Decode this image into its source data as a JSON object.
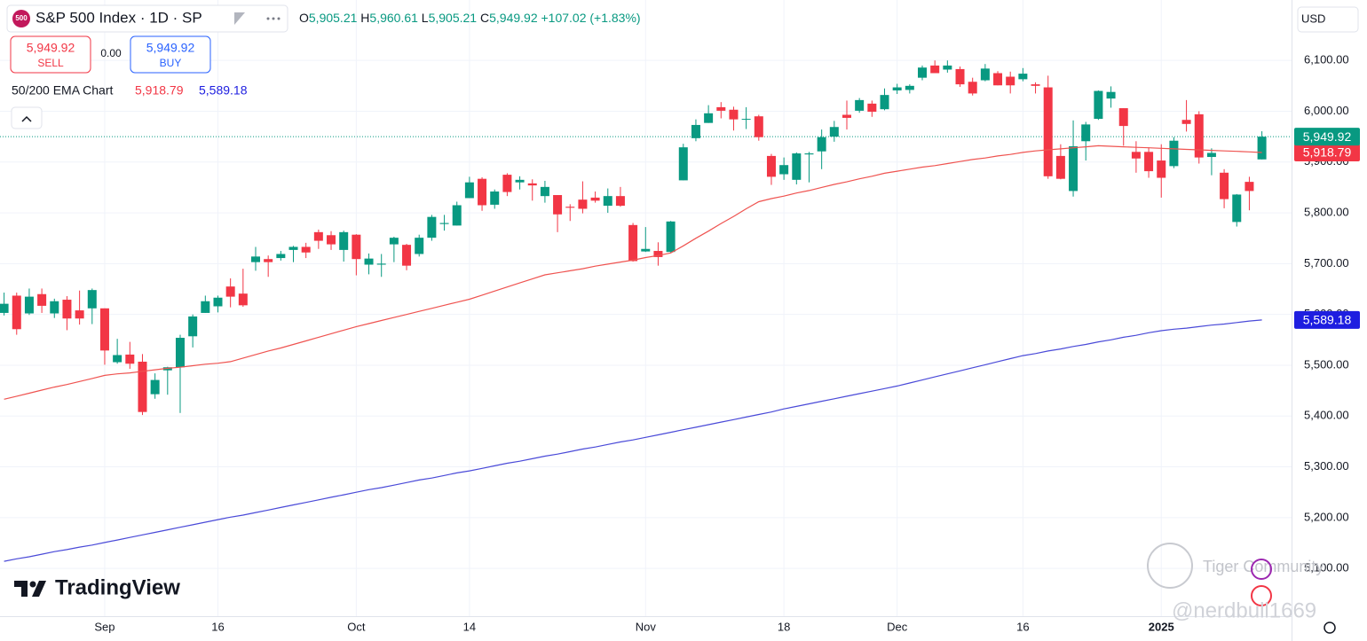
{
  "header": {
    "ohlc": [
      [
        "O",
        "5,905.21"
      ],
      [
        "H",
        "5,960.61"
      ],
      [
        "L",
        "5,905.21"
      ],
      [
        "C",
        "5,949.92"
      ]
    ],
    "change": "+107.02 (+1.83%)",
    "sell_price": "5,949.92",
    "sell": "SELL",
    "spread": "0.00",
    "buy_price": "5,949.92",
    "buy": "BUY",
    "indicator": "50/200 EMA Chart",
    "currency": "USD",
    "logo": "TradingView",
    "watermark": "Tiger Community",
    "handle": "@nerdbull1669"
  },
  "chart_data": {
    "type": "candlestick",
    "title": "S&P 500 Index · 1D · SP",
    "categories": [
      null,
      null,
      null,
      null,
      null,
      null,
      null,
      null,
      "Sep",
      null,
      null,
      null,
      null,
      null,
      null,
      null,
      null,
      "16",
      null,
      null,
      null,
      null,
      null,
      null,
      null,
      null,
      null,
      null,
      "Oct",
      null,
      null,
      null,
      null,
      null,
      null,
      null,
      null,
      "14",
      null,
      null,
      null,
      null,
      null,
      null,
      null,
      null,
      null,
      null,
      null,
      null,
      null,
      "Nov",
      null,
      null,
      null,
      null,
      null,
      null,
      null,
      null,
      null,
      null,
      "18",
      null,
      null,
      null,
      null,
      null,
      null,
      null,
      null,
      "Dec",
      null,
      null,
      null,
      null,
      null,
      null,
      null,
      null,
      null,
      "16",
      null,
      null,
      null,
      null,
      null,
      null,
      null,
      null,
      null,
      null,
      "2025",
      null,
      null,
      null,
      null,
      null,
      null,
      null,
      null
    ],
    "open": [
      5603,
      5637,
      5602,
      5640,
      5602,
      5629,
      5608,
      5612,
      5612,
      5506,
      5521,
      5507,
      5443,
      5490,
      5496,
      5557,
      5603,
      5616,
      5655,
      5641,
      5703,
      5709,
      5711,
      5727,
      5733,
      5762,
      5756,
      5727,
      5757,
      5698,
      5698,
      5738,
      5737,
      5719,
      5751,
      5778,
      5775,
      5829,
      5867,
      5816,
      5875,
      5860,
      5858,
      5833,
      5835,
      5812,
      5826,
      5830,
      5814,
      5833,
      5776,
      5724,
      5725,
      5723,
      5864,
      5947,
      5977,
      6008,
      6003,
      5985,
      5990,
      5912,
      5876,
      5865,
      5915,
      5921,
      5950,
      5993,
      6001,
      6015,
      6004,
      6041,
      6042,
      6066,
      6090,
      6082,
      6083,
      6058,
      6061,
      6075,
      6068,
      6063,
      6053,
      6047,
      5912,
      5843,
      5941,
      5985,
      6025,
      6006,
      5920,
      5920,
      5903,
      5892,
      5983,
      5994,
      5910,
      5879,
      5782,
      5861,
      5905.21
    ],
    "high": [
      5643,
      5643,
      5651,
      5651,
      5631,
      5636,
      5647,
      5651,
      5612,
      5552,
      5546,
      5522,
      5484,
      5497,
      5560,
      5600,
      5637,
      5637,
      5671,
      5690,
      5733,
      5716,
      5725,
      5735,
      5741,
      5767,
      5764,
      5765,
      5758,
      5720,
      5719,
      5753,
      5739,
      5757,
      5796,
      5796,
      5822,
      5871,
      5870,
      5846,
      5878,
      5872,
      5866,
      5863,
      5835,
      5817,
      5862,
      5842,
      5848,
      5851,
      5780,
      5772,
      5742,
      5784,
      5936,
      5984,
      6012,
      6018,
      6009,
      6008,
      5993,
      5916,
      5909,
      5919,
      5920,
      5964,
      5981,
      6021,
      6026,
      6021,
      6045,
      6054,
      6053,
      6090,
      6100,
      6100,
      6088,
      6066,
      6093,
      6079,
      6078,
      6085,
      6057,
      6070,
      5935,
      5982,
      5979,
      6041,
      6049,
      6006,
      5941,
      5929,
      5935,
      5949,
      6022,
      6000,
      5927,
      5886,
      5837,
      5871,
      5960.61
    ],
    "low": [
      5598,
      5560,
      5599,
      5603,
      5593,
      5569,
      5580,
      5581,
      5501,
      5503,
      5493,
      5402,
      5434,
      5442,
      5406,
      5535,
      5603,
      5604,
      5614,
      5615,
      5686,
      5674,
      5706,
      5703,
      5711,
      5729,
      5727,
      5704,
      5677,
      5679,
      5674,
      5703,
      5687,
      5714,
      5745,
      5765,
      5775,
      5829,
      5804,
      5808,
      5833,
      5846,
      5824,
      5820,
      5762,
      5784,
      5799,
      5820,
      5800,
      5812,
      5704,
      5723,
      5696,
      5722,
      5864,
      5941,
      5977,
      5986,
      5962,
      5965,
      5942,
      5855,
      5865,
      5856,
      5860,
      5886,
      5940,
      5964,
      5997,
      5989,
      6002,
      6034,
      6035,
      6061,
      6075,
      6076,
      6048,
      6031,
      6059,
      6051,
      6035,
      6059,
      6035,
      5867,
      5866,
      5832,
      5903,
      5983,
      6007,
      5932,
      5879,
      5869,
      5830,
      5888,
      5960,
      5897,
      5874,
      5809,
      5773,
      5805,
      5905.21
    ],
    "close": [
      5621,
      5571,
      5635,
      5617,
      5626,
      5592,
      5592,
      5648,
      5529,
      5520,
      5503,
      5408,
      5471,
      5496,
      5554,
      5596,
      5626,
      5633,
      5635,
      5618,
      5714,
      5703,
      5719,
      5733,
      5722,
      5745,
      5738,
      5762,
      5709,
      5710,
      5700,
      5751,
      5696,
      5751,
      5792,
      5780,
      5815,
      5860,
      5815,
      5842,
      5841,
      5865,
      5854,
      5851,
      5797,
      5810,
      5808,
      5824,
      5833,
      5814,
      5705,
      5729,
      5713,
      5783,
      5929,
      5973,
      5996,
      6001,
      5984,
      5985,
      5949,
      5871,
      5894,
      5917,
      5917,
      5949,
      5969,
      5987,
      6022,
      5999,
      6032,
      6047,
      6050,
      6086,
      6075,
      6090,
      6053,
      6035,
      6084,
      6051,
      6051,
      6074,
      6050,
      5872,
      5867,
      5931,
      5974,
      6040,
      6038,
      5971,
      5907,
      5882,
      5869,
      5942,
      5975,
      5909,
      5918,
      5827,
      5836,
      5843,
      5949.92
    ],
    "last_label": "5,949.92",
    "up_color": "#089981",
    "down_color": "#f23645",
    "lines": [
      {
        "color": "#ef5350",
        "tag_color": "#f23645",
        "last_label": "5,918.79",
        "values": [
          5433,
          5439,
          5445,
          5451,
          5457,
          5462,
          5468,
          5474,
          5480,
          5483,
          5485,
          5488,
          5491,
          5494,
          5496,
          5499,
          5502,
          5504,
          5507,
          5514,
          5521,
          5528,
          5534,
          5541,
          5548,
          5555,
          5562,
          5569,
          5576,
          5582,
          5588,
          5594,
          5600,
          5606,
          5612,
          5618,
          5624,
          5630,
          5638,
          5646,
          5654,
          5662,
          5670,
          5678,
          5682,
          5686,
          5690,
          5695,
          5699,
          5703,
          5707,
          5712,
          5716,
          5721,
          5735,
          5750,
          5764,
          5779,
          5793,
          5808,
          5822,
          5828,
          5833,
          5839,
          5844,
          5850,
          5856,
          5861,
          5867,
          5872,
          5878,
          5882,
          5886,
          5890,
          5893,
          5897,
          5901,
          5905,
          5908,
          5912,
          5915,
          5919,
          5922,
          5924,
          5926,
          5928,
          5930,
          5932,
          5931,
          5930,
          5929,
          5928,
          5927,
          5926,
          5925,
          5924,
          5923,
          5922,
          5921,
          5920,
          5918.79
        ]
      },
      {
        "color": "#4a4ad8",
        "tag_color": "#1e1ee0",
        "last_label": "5,589.18",
        "values": [
          5114,
          5119,
          5123,
          5128,
          5133,
          5137,
          5142,
          5146,
          5151,
          5156,
          5161,
          5166,
          5171,
          5176,
          5181,
          5186,
          5191,
          5196,
          5201,
          5205,
          5210,
          5215,
          5220,
          5225,
          5230,
          5235,
          5240,
          5245,
          5250,
          5255,
          5259,
          5264,
          5269,
          5274,
          5278,
          5283,
          5288,
          5292,
          5297,
          5302,
          5307,
          5311,
          5316,
          5321,
          5325,
          5330,
          5335,
          5339,
          5344,
          5349,
          5353,
          5358,
          5363,
          5368,
          5373,
          5378,
          5383,
          5388,
          5393,
          5398,
          5403,
          5408,
          5414,
          5419,
          5424,
          5429,
          5434,
          5439,
          5444,
          5449,
          5454,
          5459,
          5465,
          5471,
          5477,
          5483,
          5489,
          5495,
          5501,
          5507,
          5513,
          5519,
          5523,
          5528,
          5532,
          5537,
          5541,
          5546,
          5550,
          5555,
          5559,
          5564,
          5568,
          5571,
          5573,
          5576,
          5579,
          5581,
          5584,
          5587,
          5589.18
        ]
      }
    ],
    "ylim": [
      5006,
      6219
    ],
    "yticks": [
      {
        "value": 5100,
        "label": "5,100.00"
      },
      {
        "value": 5200,
        "label": "5,200.00"
      },
      {
        "value": 5300,
        "label": "5,300.00"
      },
      {
        "value": 5400,
        "label": "5,400.00"
      },
      {
        "value": 5500,
        "label": "5,500.00"
      },
      {
        "value": 5600,
        "label": "5,600.00"
      },
      {
        "value": 5700,
        "label": "5,700.00"
      },
      {
        "value": 5800,
        "label": "5,800.00"
      },
      {
        "value": 5900,
        "label": "5,900.00"
      },
      {
        "value": 6000,
        "label": "6,000.00"
      },
      {
        "value": 6100,
        "label": "6,100.00"
      }
    ],
    "grid": true
  }
}
